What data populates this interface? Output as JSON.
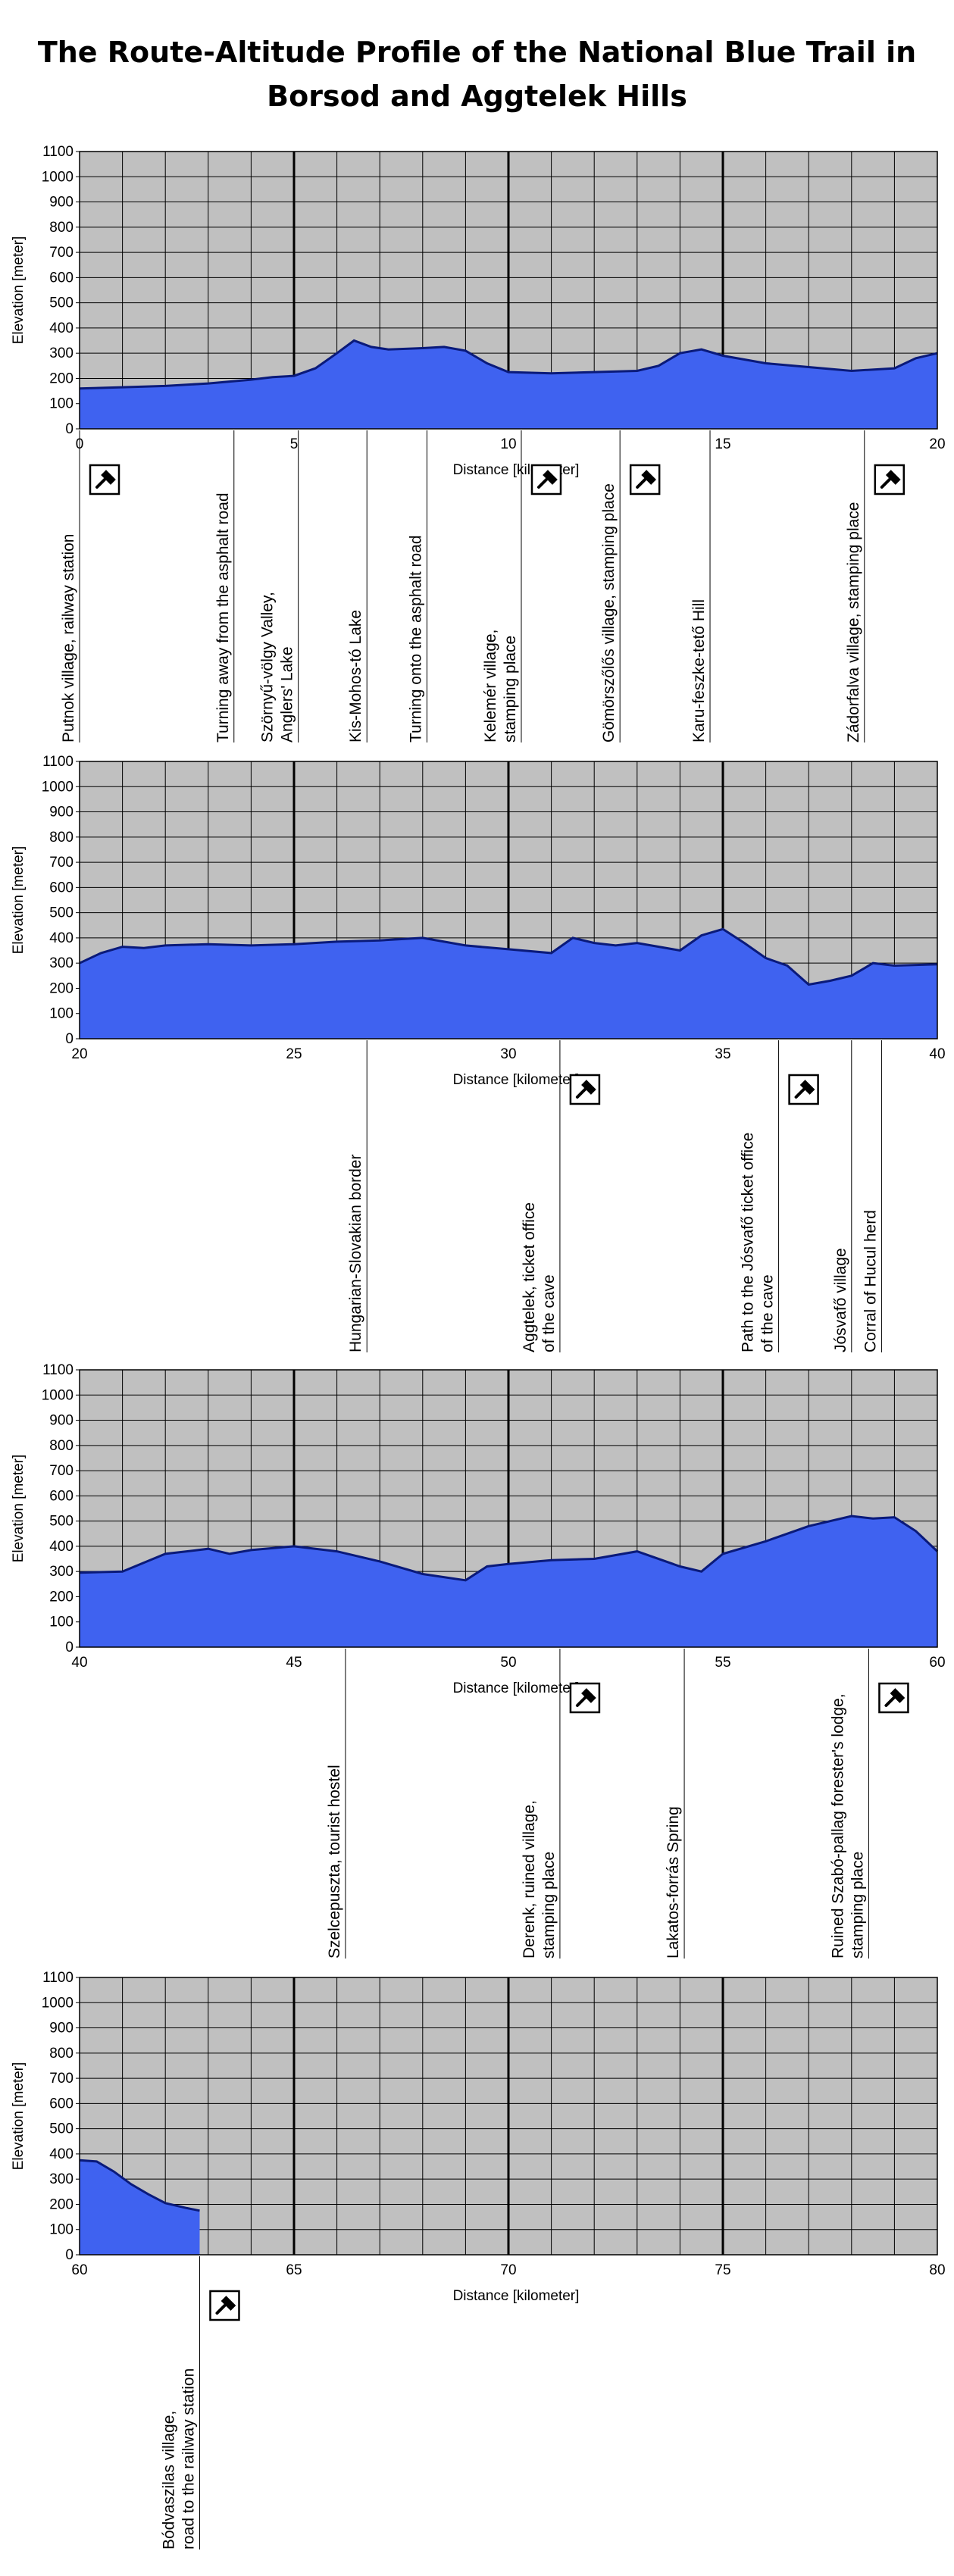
{
  "title": {
    "line1": "The Route-Altitude Profile of the National Blue Trail in",
    "line2": "Borsod and Aggtelek Hills"
  },
  "colors": {
    "plot_bg": "#c0c0c0",
    "fill": "#3f62f0",
    "line": "#0a1a7a",
    "grid": "#000000"
  },
  "icons": {
    "stamp": "stamp-icon"
  },
  "chart_data": [
    {
      "type": "area",
      "xlabel": "Distance [kilometer]",
      "ylabel": "Elevation [meter]",
      "xlim": [
        0,
        20
      ],
      "ylim": [
        0,
        1100
      ],
      "x_ticks": [
        0,
        5,
        10,
        15,
        20
      ],
      "y_ticks": [
        0,
        100,
        200,
        300,
        400,
        500,
        600,
        700,
        800,
        900,
        1000,
        1100
      ],
      "grid": true,
      "series": [
        {
          "x": [
            0,
            1,
            2,
            3,
            4,
            4.5,
            5,
            5.5,
            6,
            6.4,
            6.8,
            7.2,
            8,
            8.5,
            9,
            9.5,
            10,
            11,
            12,
            13,
            13.5,
            14,
            14.5,
            15,
            16,
            17,
            18,
            19,
            19.5,
            20
          ],
          "y": [
            160,
            165,
            170,
            180,
            195,
            205,
            210,
            240,
            300,
            350,
            325,
            315,
            320,
            325,
            310,
            260,
            225,
            220,
            225,
            230,
            250,
            300,
            315,
            290,
            260,
            245,
            230,
            240,
            280,
            300
          ]
        }
      ],
      "annotations": [
        {
          "x": 0,
          "lines": [
            "Putnok village, railway station"
          ],
          "stamp": true
        },
        {
          "x": 3.6,
          "lines": [
            "Turning away from the asphalt road"
          ],
          "stamp": false
        },
        {
          "x": 5.1,
          "lines": [
            "Szörnyű-völgy Valley,",
            "Anglers' Lake"
          ],
          "stamp": false
        },
        {
          "x": 6.7,
          "lines": [
            "Kis-Mohos-tó Lake"
          ],
          "stamp": false
        },
        {
          "x": 8.1,
          "lines": [
            "Turning onto the asphalt road"
          ],
          "stamp": false
        },
        {
          "x": 10.3,
          "lines": [
            "Kelemér village,",
            "stamping place"
          ],
          "stamp": true
        },
        {
          "x": 12.6,
          "lines": [
            "Gömörszőlős village, stamping place"
          ],
          "stamp": true
        },
        {
          "x": 14.7,
          "lines": [
            "Karu-feszke-tető Hill"
          ],
          "stamp": false
        },
        {
          "x": 18.3,
          "lines": [
            "Zádorfalva village, stamping place"
          ],
          "stamp": true
        }
      ]
    },
    {
      "type": "area",
      "xlabel": "Distance [kilometer]",
      "ylabel": "Elevation [meter]",
      "xlim": [
        20,
        40
      ],
      "ylim": [
        0,
        1100
      ],
      "x_ticks": [
        20,
        25,
        30,
        35,
        40
      ],
      "y_ticks": [
        0,
        100,
        200,
        300,
        400,
        500,
        600,
        700,
        800,
        900,
        1000,
        1100
      ],
      "grid": true,
      "series": [
        {
          "x": [
            20,
            20.5,
            21,
            21.5,
            22,
            23,
            24,
            25,
            26,
            27,
            28,
            29,
            30,
            31,
            31.5,
            32,
            32.5,
            33,
            34,
            34.5,
            35,
            35.5,
            36,
            36.5,
            37,
            37.5,
            38,
            38.5,
            39,
            40
          ],
          "y": [
            300,
            340,
            365,
            360,
            370,
            375,
            370,
            375,
            385,
            390,
            400,
            370,
            355,
            340,
            400,
            380,
            370,
            380,
            350,
            410,
            435,
            380,
            320,
            290,
            215,
            230,
            250,
            300,
            290,
            295
          ]
        }
      ],
      "annotations": [
        {
          "x": 26.7,
          "lines": [
            "Hungarian-Slovakian border"
          ],
          "stamp": false
        },
        {
          "x": 31.2,
          "lines": [
            "Aggtelek, ticket office",
            "of the cave"
          ],
          "stamp": true
        },
        {
          "x": 36.3,
          "lines": [
            "Path to the Jósvafő ticket office",
            "of the cave"
          ],
          "stamp": true
        },
        {
          "x": 38,
          "lines": [
            "Jósvafő village"
          ],
          "stamp": false
        },
        {
          "x": 38.7,
          "lines": [
            "Corral of Hucul herd"
          ],
          "stamp": false
        }
      ]
    },
    {
      "type": "area",
      "xlabel": "Distance [kilometer]",
      "ylabel": "Elevation [meter]",
      "xlim": [
        40,
        60
      ],
      "ylim": [
        0,
        1100
      ],
      "x_ticks": [
        40,
        45,
        50,
        55,
        60
      ],
      "y_ticks": [
        0,
        100,
        200,
        300,
        400,
        500,
        600,
        700,
        800,
        900,
        1000,
        1100
      ],
      "grid": true,
      "series": [
        {
          "x": [
            40,
            41,
            42,
            42.5,
            43,
            43.5,
            44,
            45,
            46,
            47,
            48,
            49,
            49.5,
            50,
            51,
            52,
            53,
            54,
            54.5,
            55,
            56,
            57,
            58,
            58.5,
            59,
            59.5,
            60
          ],
          "y": [
            295,
            300,
            370,
            380,
            390,
            370,
            385,
            400,
            380,
            340,
            290,
            265,
            320,
            330,
            345,
            350,
            380,
            320,
            300,
            370,
            420,
            480,
            520,
            510,
            515,
            460,
            380
          ]
        }
      ],
      "annotations": [
        {
          "x": 46.2,
          "lines": [
            "Szelcepuszta, tourist hostel"
          ],
          "stamp": false
        },
        {
          "x": 51.2,
          "lines": [
            "Derenk, ruined village,",
            "stamping place"
          ],
          "stamp": true
        },
        {
          "x": 54.1,
          "lines": [
            "Lakatos-forrás Spring"
          ],
          "stamp": false
        },
        {
          "x": 58.4,
          "lines": [
            "Ruined Szabó-pallag forester's lodge,",
            "stamping place"
          ],
          "stamp": true
        }
      ]
    },
    {
      "type": "area",
      "xlabel": "Distance [kilometer]",
      "ylabel": "Elevation [meter]",
      "xlim": [
        60,
        80
      ],
      "ylim": [
        0,
        1100
      ],
      "x_ticks": [
        60,
        65,
        70,
        75,
        80
      ],
      "y_ticks": [
        0,
        100,
        200,
        300,
        400,
        500,
        600,
        700,
        800,
        900,
        1000,
        1100
      ],
      "grid": true,
      "series": [
        {
          "x": [
            60,
            60.4,
            60.8,
            61.2,
            61.6,
            62,
            62.5,
            62.8
          ],
          "y": [
            375,
            370,
            330,
            280,
            240,
            205,
            185,
            175
          ]
        }
      ],
      "annotations": [
        {
          "x": 62.8,
          "lines": [
            "Bódvaszilas village,",
            "road to the railway station"
          ],
          "stamp": true
        }
      ]
    }
  ]
}
